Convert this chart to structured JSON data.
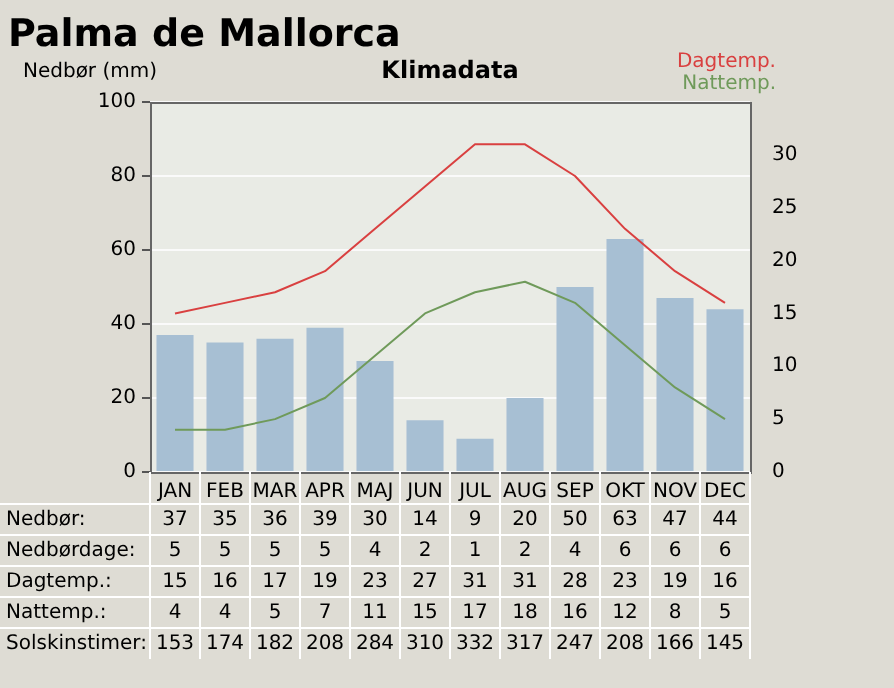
{
  "chart_data": {
    "type": "bar",
    "title": "Palma de Mallorca",
    "subtitle": "Klimadata",
    "ylabel": "Nedbør (mm)",
    "categories": [
      "JAN",
      "FEB",
      "MAR",
      "APR",
      "MAJ",
      "JUN",
      "JUL",
      "AUG",
      "SEP",
      "OKT",
      "NOV",
      "DEC"
    ],
    "series": [
      {
        "color": "#a7bfd3",
        "values": [
          37,
          35,
          36,
          39,
          30,
          14,
          9,
          20,
          50,
          63,
          47,
          44
        ]
      },
      {
        "name": "Dagtemp.",
        "type": "line",
        "axis": "y2",
        "color": "#d94040",
        "values": [
          15,
          16,
          17,
          19,
          23,
          27,
          31,
          31,
          28,
          23,
          19,
          16
        ]
      },
      {
        "name": "Nattemp.",
        "type": "line",
        "axis": "y2",
        "color": "#6f9a5a",
        "values": [
          4,
          4,
          5,
          7,
          11,
          15,
          17,
          18,
          16,
          12,
          8,
          5
        ]
      }
    ],
    "annotations": [
      "Nedbør:",
      "Nedbørdage:",
      "5",
      "5",
      "5",
      "5",
      "4",
      "2",
      "1",
      "2",
      "4",
      "6",
      "6",
      "6",
      "Dagtemp.:",
      "Nattemp.:",
      "Solskinstimer:",
      "153",
      "174",
      "182",
      "208",
      "284",
      "310",
      "332",
      "317",
      "247",
      "208",
      "166",
      "145"
    ],
    "ylim": [
      0,
      100
    ],
    "yticks": [
      0,
      20,
      40,
      60,
      80,
      100
    ],
    "y2lim": [
      0,
      35
    ],
    "y2ticks": [
      0,
      5,
      10,
      15,
      20,
      25,
      30
    ],
    "grid": "y",
    "legend": "top right",
    "marker": "none",
    "line_style": "solid",
    "data_labels": true
  }
}
